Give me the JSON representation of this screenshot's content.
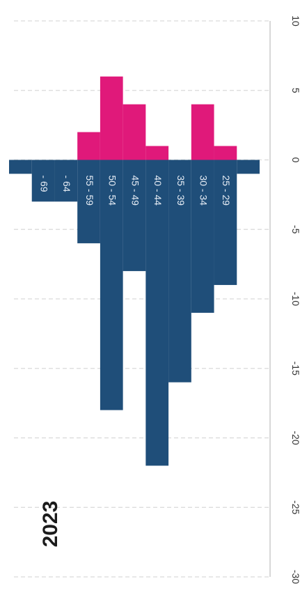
{
  "chart_data": {
    "type": "bar",
    "orientation": "rotated",
    "title": "2023",
    "value_axis": {
      "range": [
        -30,
        10
      ],
      "ticks": [
        10,
        5,
        0,
        -5,
        -10,
        -15,
        -20,
        -25,
        -30
      ],
      "grid": true
    },
    "categories": [
      "",
      "25 - 29",
      "30 - 34",
      "35 - 39",
      "40 - 44",
      "45 - 49",
      "50 - 54",
      "55 - 59",
      "- 64",
      "- 69",
      ""
    ],
    "series": [
      {
        "color": "#1f4e79",
        "values": [
          -1,
          -9,
          -11,
          -16,
          -22,
          -8,
          -18,
          -6,
          -3,
          -3,
          -1
        ]
      },
      {
        "color": "#e0197a",
        "values": [
          0,
          1,
          4,
          0,
          1,
          4,
          6,
          2,
          0,
          0,
          0
        ]
      }
    ],
    "colors": {
      "negative": "#1f4e79",
      "positive": "#e0197a",
      "grid": "#d9d9d9"
    }
  }
}
